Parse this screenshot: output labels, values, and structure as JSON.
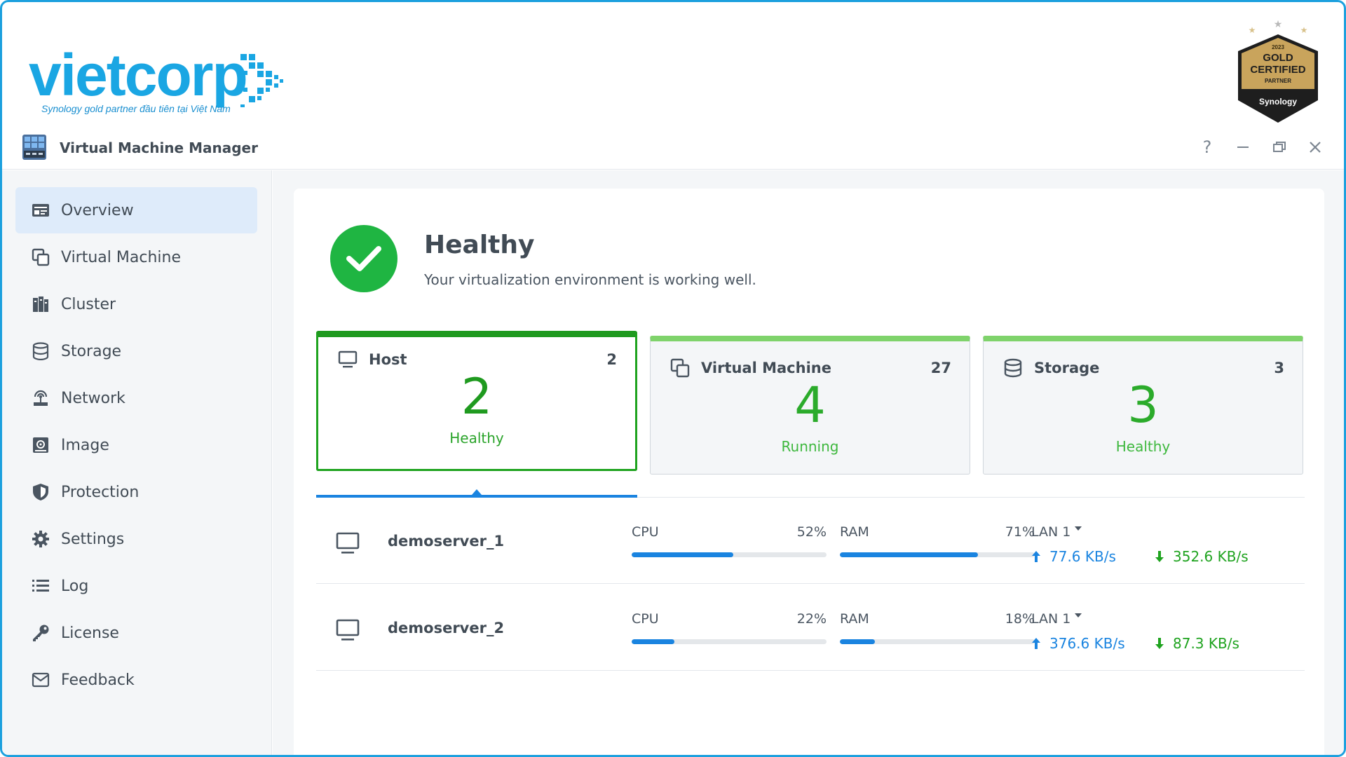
{
  "brand": {
    "logo_text": "vietcorp",
    "tagline": "Synology gold partner đầu tiên tại Việt Nam",
    "badge": {
      "year": "2023",
      "line1": "GOLD",
      "line2": "CERTIFIED",
      "line3": "PARTNER",
      "vendor": "Synology"
    }
  },
  "window": {
    "title": "Virtual Machine Manager",
    "controls": {
      "help": "?",
      "minimize": "—",
      "restore": "❐",
      "close": "✕"
    }
  },
  "sidebar": {
    "items": [
      {
        "label": "Overview",
        "icon": "overview-icon",
        "active": true
      },
      {
        "label": "Virtual Machine",
        "icon": "virtual-machine-icon"
      },
      {
        "label": "Cluster",
        "icon": "cluster-icon"
      },
      {
        "label": "Storage",
        "icon": "storage-icon"
      },
      {
        "label": "Network",
        "icon": "network-icon"
      },
      {
        "label": "Image",
        "icon": "image-icon"
      },
      {
        "label": "Protection",
        "icon": "shield-icon"
      },
      {
        "label": "Settings",
        "icon": "gear-icon"
      },
      {
        "label": "Log",
        "icon": "list-icon"
      },
      {
        "label": "License",
        "icon": "key-icon"
      },
      {
        "label": "Feedback",
        "icon": "mail-icon"
      }
    ]
  },
  "status": {
    "title": "Healthy",
    "subtitle": "Your virtualization environment is working well."
  },
  "cards": [
    {
      "label": "Host",
      "count": "2",
      "big": "2",
      "state": "Healthy",
      "icon": "monitor-icon"
    },
    {
      "label": "Virtual Machine",
      "count": "27",
      "big": "4",
      "state": "Running",
      "icon": "virtual-machine-icon"
    },
    {
      "label": "Storage",
      "count": "3",
      "big": "3",
      "state": "Healthy",
      "icon": "storage-icon"
    }
  ],
  "hosts": [
    {
      "name": "demoserver_1",
      "cpu_label": "CPU",
      "cpu_pct": "52%",
      "cpu_value": 0.52,
      "ram_label": "RAM",
      "ram_pct": "71%",
      "ram_value": 0.71,
      "lan_label": "LAN 1",
      "upload": "77.6 KB/s",
      "download": "352.6 KB/s"
    },
    {
      "name": "demoserver_2",
      "cpu_label": "CPU",
      "cpu_pct": "22%",
      "cpu_value": 0.22,
      "ram_label": "RAM",
      "ram_pct": "18%",
      "ram_value": 0.18,
      "lan_label": "LAN 1",
      "upload": "376.6 KB/s",
      "download": "87.3 KB/s"
    }
  ],
  "colors": {
    "accent": "#1a84e0",
    "healthy": "#1fb542",
    "brand": "#1aa6e3",
    "frame": "#1ca0de"
  }
}
